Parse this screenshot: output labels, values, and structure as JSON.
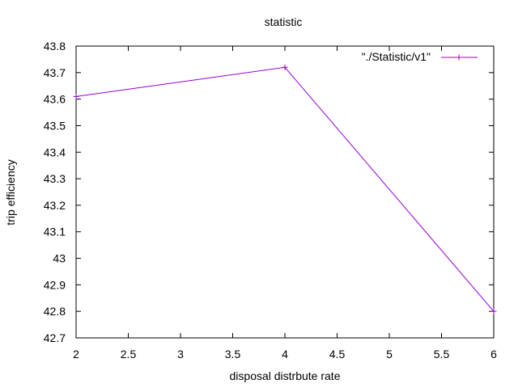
{
  "chart_data": {
    "type": "line",
    "title": "statistic",
    "xlabel": "disposal distrbute rate",
    "ylabel": "trip efficiency",
    "xlim": [
      2,
      6
    ],
    "ylim": [
      42.7,
      43.8
    ],
    "xticks": [
      "2",
      "2.5",
      "3",
      "3.5",
      "4",
      "4.5",
      "5",
      "5.5",
      "6"
    ],
    "yticks": [
      "42.7",
      "42.8",
      "42.9",
      "43",
      "43.1",
      "43.2",
      "43.3",
      "43.4",
      "43.5",
      "43.6",
      "43.7",
      "43.8"
    ],
    "grid": false,
    "legend_position": "top-right",
    "series": [
      {
        "name": "\"./Statistic/v1\"",
        "color": "#9400d3",
        "marker": "plus",
        "x": [
          2,
          4,
          6
        ],
        "y": [
          43.61,
          43.72,
          42.8
        ]
      }
    ]
  }
}
